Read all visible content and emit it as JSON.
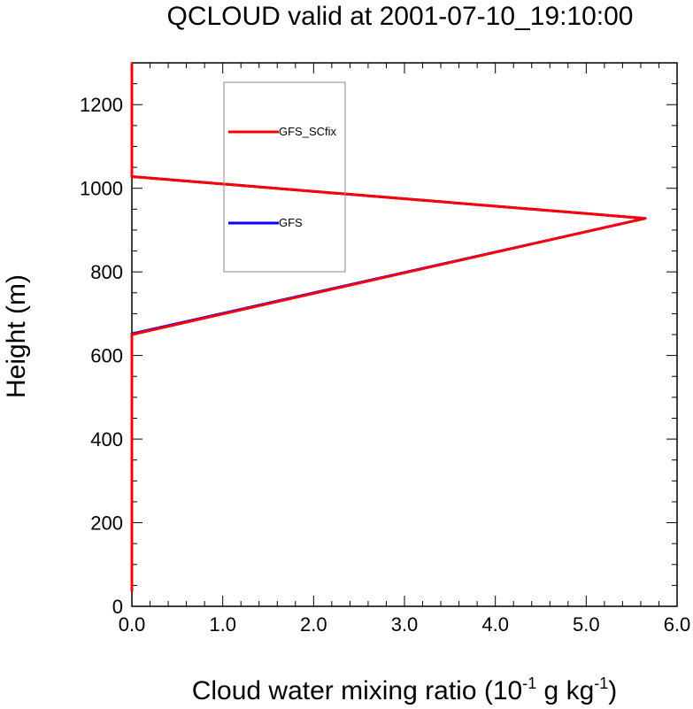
{
  "chart_data": {
    "type": "line",
    "title": "QCLOUD valid at 2001-07-10_19:10:00",
    "xlabel_main": "Cloud water mixing ratio (10",
    "xlabel_exp1": "-1",
    "xlabel_mid": " g kg",
    "xlabel_exp2": "-1",
    "xlabel_end": ")",
    "ylabel": "Height (m)",
    "xlim": [
      0,
      6
    ],
    "ylim": [
      0,
      1300
    ],
    "x_ticks": [
      0,
      1,
      2,
      3,
      4,
      5,
      6
    ],
    "x_tick_labels": [
      "0.0",
      "1.0",
      "2.0",
      "3.0",
      "4.0",
      "5.0",
      "6.0"
    ],
    "y_ticks": [
      0,
      200,
      400,
      600,
      800,
      1000,
      1200
    ],
    "y_tick_labels": [
      "0",
      "200",
      "400",
      "600",
      "800",
      "1000",
      "1200"
    ],
    "legend_position": "top-left-center",
    "series": [
      {
        "name": "GFS",
        "color": "#0000ff",
        "points": [
          [
            0,
            35
          ],
          [
            0,
            652
          ],
          [
            5.65,
            928
          ],
          [
            0,
            1028
          ],
          [
            0,
            1300
          ]
        ]
      },
      {
        "name": "GFS_SCfix",
        "color": "#ff0000",
        "points": [
          [
            0,
            35
          ],
          [
            0,
            650
          ],
          [
            5.65,
            928
          ],
          [
            0,
            1028
          ],
          [
            0,
            1300
          ]
        ]
      }
    ],
    "legend_order": [
      "GFS_SCfix",
      "GFS"
    ]
  }
}
